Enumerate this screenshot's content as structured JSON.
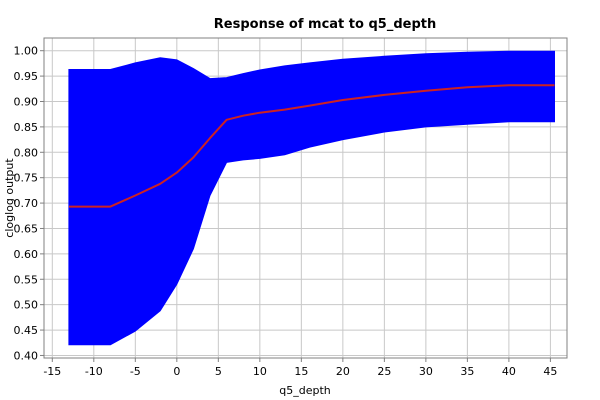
{
  "chart_data": {
    "type": "area",
    "title": "Response of mcat to q5_depth",
    "xlabel": "q5_depth",
    "ylabel": "cloglog output",
    "xlim": [
      -16,
      47
    ],
    "ylim": [
      0.395,
      1.025
    ],
    "x_ticks": [
      -15,
      -10,
      -5,
      0,
      5,
      10,
      15,
      20,
      25,
      30,
      35,
      40,
      45
    ],
    "y_ticks": [
      0.4,
      0.45,
      0.5,
      0.55,
      0.6,
      0.65,
      0.7,
      0.75,
      0.8,
      0.85,
      0.9,
      0.95,
      1.0
    ],
    "grid": true,
    "band_color": "#0000ff",
    "line_color": "#cc2222",
    "series": [
      {
        "x": [
          -13,
          -8,
          -5,
          -2,
          0,
          2,
          4,
          6,
          8,
          10,
          13,
          16,
          20,
          25,
          30,
          35,
          40,
          45.5
        ],
        "values": [
          0.693,
          0.693,
          0.715,
          0.738,
          0.76,
          0.79,
          0.828,
          0.864,
          0.872,
          0.878,
          0.884,
          0.892,
          0.903,
          0.913,
          0.921,
          0.928,
          0.932,
          0.932
        ]
      },
      {
        "x": [
          -13,
          -8,
          -5,
          -2,
          0,
          2,
          4,
          6,
          8,
          10,
          13,
          16,
          20,
          25,
          30,
          35,
          40,
          45.5
        ],
        "values": [
          0.963,
          0.963,
          0.976,
          0.986,
          0.982,
          0.965,
          0.945,
          0.947,
          0.955,
          0.962,
          0.97,
          0.976,
          0.983,
          0.989,
          0.994,
          0.997,
          0.999,
          0.999
        ]
      },
      {
        "x": [
          -13,
          -8,
          -5,
          -2,
          0,
          2,
          4,
          6,
          8,
          10,
          13,
          16,
          20,
          25,
          30,
          35,
          40,
          45.5
        ],
        "values": [
          0.421,
          0.421,
          0.448,
          0.488,
          0.54,
          0.61,
          0.715,
          0.78,
          0.785,
          0.788,
          0.795,
          0.81,
          0.825,
          0.84,
          0.85,
          0.855,
          0.86,
          0.86
        ]
      }
    ]
  }
}
